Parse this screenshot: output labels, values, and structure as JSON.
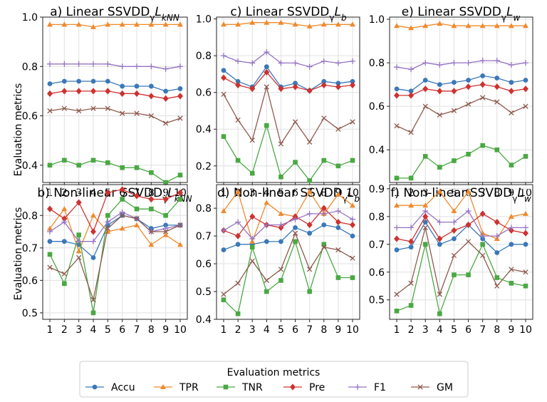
{
  "figure": {
    "ylabel": "Evaluation metrics",
    "legend_title": "Evaluation metrics",
    "colors": {
      "Accu": "#3a78b8",
      "TPR": "#ef8a2e",
      "TNR": "#4aa843",
      "Pre": "#cc3330",
      "F1": "#9674c4",
      "GM": "#8f5a4e"
    },
    "markers": {
      "Accu": "circle",
      "TPR": "triangle",
      "TNR": "square",
      "Pre": "diamond",
      "F1": "plus",
      "GM": "x"
    }
  },
  "chart_data": [
    {
      "type": "line",
      "title_main": "a) Linear SSVDD",
      "title_sub": "γ",
      "title_main2": "L",
      "title_sub2": "kNN",
      "x": [
        1,
        2,
        3,
        4,
        5,
        6,
        7,
        8,
        9,
        10
      ],
      "ylim": [
        0.33,
        1.0
      ],
      "yticks": [
        0.4,
        0.6,
        0.8,
        1.0
      ],
      "ytick_labels": [
        "0.4",
        "0.6",
        "0.8",
        "1.0"
      ],
      "xlabels": [
        "1",
        "2",
        "3",
        "4",
        "5",
        "6",
        "7",
        "8",
        "9",
        "10"
      ],
      "series": [
        {
          "name": "Accu",
          "values": [
            0.73,
            0.74,
            0.74,
            0.74,
            0.74,
            0.72,
            0.72,
            0.72,
            0.7,
            0.71
          ]
        },
        {
          "name": "TPR",
          "values": [
            0.97,
            0.97,
            0.97,
            0.96,
            0.97,
            0.97,
            0.97,
            0.97,
            0.97,
            0.97
          ]
        },
        {
          "name": "TNR",
          "values": [
            0.4,
            0.42,
            0.4,
            0.42,
            0.41,
            0.39,
            0.39,
            0.37,
            0.33,
            0.36
          ]
        },
        {
          "name": "Pre",
          "values": [
            0.69,
            0.7,
            0.7,
            0.7,
            0.7,
            0.69,
            0.69,
            0.68,
            0.67,
            0.68
          ]
        },
        {
          "name": "F1",
          "values": [
            0.81,
            0.81,
            0.81,
            0.81,
            0.81,
            0.8,
            0.8,
            0.8,
            0.79,
            0.8
          ]
        },
        {
          "name": "GM",
          "values": [
            0.62,
            0.63,
            0.62,
            0.63,
            0.63,
            0.61,
            0.61,
            0.6,
            0.57,
            0.59
          ]
        }
      ]
    },
    {
      "type": "line",
      "title_main": "c) Linear SSVDD",
      "title_sub": "γ",
      "title_main2": "L",
      "title_sub2": "b",
      "x": [
        1,
        2,
        3,
        4,
        5,
        6,
        7,
        8,
        9,
        10
      ],
      "ylim": [
        0.11,
        1.01
      ],
      "yticks": [
        0.2,
        0.4,
        0.6,
        0.8,
        1.0
      ],
      "ytick_labels": [
        "0.2",
        "0.4",
        "0.6",
        "0.8",
        "1.0"
      ],
      "xlabels": [
        "1",
        "2",
        "3",
        "4",
        "5",
        "6",
        "7",
        "8",
        "9",
        "10"
      ],
      "series": [
        {
          "name": "Accu",
          "values": [
            0.72,
            0.66,
            0.63,
            0.74,
            0.63,
            0.65,
            0.61,
            0.66,
            0.65,
            0.66
          ]
        },
        {
          "name": "TPR",
          "values": [
            0.97,
            0.97,
            0.98,
            0.98,
            0.98,
            0.97,
            0.96,
            0.97,
            0.97,
            0.97
          ]
        },
        {
          "name": "TNR",
          "values": [
            0.36,
            0.23,
            0.16,
            0.42,
            0.14,
            0.22,
            0.12,
            0.23,
            0.2,
            0.23
          ]
        },
        {
          "name": "Pre",
          "values": [
            0.68,
            0.64,
            0.62,
            0.71,
            0.62,
            0.63,
            0.61,
            0.64,
            0.63,
            0.64
          ]
        },
        {
          "name": "F1",
          "values": [
            0.8,
            0.77,
            0.76,
            0.82,
            0.76,
            0.76,
            0.74,
            0.77,
            0.76,
            0.77
          ]
        },
        {
          "name": "GM",
          "values": [
            0.59,
            0.45,
            0.34,
            0.63,
            0.32,
            0.44,
            0.33,
            0.46,
            0.4,
            0.44
          ]
        }
      ]
    },
    {
      "type": "line",
      "title_main": "e) Linear SSVDD",
      "title_sub": "γ",
      "title_main2": "L",
      "title_sub2": "w",
      "x": [
        1,
        2,
        3,
        4,
        5,
        6,
        7,
        8,
        9,
        10
      ],
      "ylim": [
        0.25,
        1.01
      ],
      "yticks": [
        0.4,
        0.6,
        0.8,
        1.0
      ],
      "ytick_labels": [
        "0.4",
        "0.6",
        "0.8",
        "1.0"
      ],
      "xlabels": [
        "1",
        "2",
        "3",
        "4",
        "5",
        "6",
        "7",
        "8",
        "9",
        "10"
      ],
      "series": [
        {
          "name": "Accu",
          "values": [
            0.68,
            0.67,
            0.72,
            0.7,
            0.71,
            0.72,
            0.74,
            0.73,
            0.71,
            0.72
          ]
        },
        {
          "name": "TPR",
          "values": [
            0.97,
            0.96,
            0.97,
            0.98,
            0.97,
            0.97,
            0.97,
            0.97,
            0.97,
            0.97
          ]
        },
        {
          "name": "TNR",
          "values": [
            0.27,
            0.27,
            0.37,
            0.32,
            0.35,
            0.38,
            0.42,
            0.4,
            0.33,
            0.37
          ]
        },
        {
          "name": "Pre",
          "values": [
            0.65,
            0.65,
            0.68,
            0.67,
            0.67,
            0.69,
            0.7,
            0.69,
            0.67,
            0.68
          ]
        },
        {
          "name": "F1",
          "values": [
            0.78,
            0.77,
            0.8,
            0.79,
            0.8,
            0.8,
            0.81,
            0.81,
            0.79,
            0.8
          ]
        },
        {
          "name": "GM",
          "values": [
            0.51,
            0.48,
            0.6,
            0.56,
            0.58,
            0.61,
            0.64,
            0.62,
            0.57,
            0.6
          ]
        }
      ]
    },
    {
      "type": "line",
      "title_main": "b) Non-linear SSVDD",
      "title_sub": "γ",
      "title_main2": "L",
      "title_sub2": "kNN",
      "x": [
        1,
        2,
        3,
        4,
        5,
        6,
        7,
        8,
        9,
        10
      ],
      "ylim": [
        0.48,
        0.895
      ],
      "yticks": [
        0.5,
        0.6,
        0.7,
        0.8
      ],
      "ytick_labels": [
        "0.5",
        "0.6",
        "0.7",
        "0.8"
      ],
      "xlabels": [
        "1",
        "2",
        "3",
        "4",
        "5",
        "6",
        "7",
        "8",
        "9",
        "10"
      ],
      "series": [
        {
          "name": "Accu",
          "values": [
            0.72,
            0.72,
            0.71,
            0.67,
            0.77,
            0.8,
            0.79,
            0.76,
            0.77,
            0.77
          ]
        },
        {
          "name": "TPR",
          "values": [
            0.76,
            0.82,
            0.69,
            0.8,
            0.75,
            0.76,
            0.77,
            0.71,
            0.74,
            0.71
          ]
        },
        {
          "name": "TNR",
          "values": [
            0.68,
            0.59,
            0.74,
            0.5,
            0.8,
            0.85,
            0.82,
            0.82,
            0.8,
            0.85
          ]
        },
        {
          "name": "Pre",
          "values": [
            0.82,
            0.79,
            0.84,
            0.75,
            0.87,
            0.88,
            0.86,
            0.85,
            0.85,
            0.87
          ]
        },
        {
          "name": "F1",
          "values": [
            0.75,
            0.78,
            0.72,
            0.72,
            0.78,
            0.81,
            0.79,
            0.75,
            0.76,
            0.77
          ]
        },
        {
          "name": "GM",
          "values": [
            0.64,
            0.62,
            0.67,
            0.54,
            0.76,
            0.8,
            0.79,
            0.75,
            0.75,
            0.77
          ]
        }
      ]
    },
    {
      "type": "line",
      "title_main": "d) Non-linear SSVDD",
      "title_sub": "γ",
      "title_main2": "L",
      "title_sub2": "b",
      "x": [
        1,
        2,
        3,
        4,
        5,
        6,
        7,
        8,
        9,
        10
      ],
      "ylim": [
        0.4,
        0.885
      ],
      "yticks": [
        0.4,
        0.5,
        0.6,
        0.7,
        0.8
      ],
      "ytick_labels": [
        "0.4",
        "0.5",
        "0.6",
        "0.7",
        "0.8"
      ],
      "xlabels": [
        "1",
        "2",
        "3",
        "4",
        "5",
        "6",
        "7",
        "8",
        "9",
        "10"
      ],
      "series": [
        {
          "name": "Accu",
          "values": [
            0.65,
            0.67,
            0.67,
            0.68,
            0.68,
            0.73,
            0.71,
            0.74,
            0.73,
            0.7
          ]
        },
        {
          "name": "TPR",
          "values": [
            0.79,
            0.86,
            0.68,
            0.82,
            0.78,
            0.77,
            0.86,
            0.78,
            0.85,
            0.81
          ]
        },
        {
          "name": "TNR",
          "values": [
            0.47,
            0.42,
            0.66,
            0.5,
            0.54,
            0.68,
            0.5,
            0.67,
            0.55,
            0.55
          ]
        },
        {
          "name": "Pre",
          "values": [
            0.72,
            0.7,
            0.77,
            0.74,
            0.73,
            0.77,
            0.74,
            0.8,
            0.75,
            0.74
          ]
        },
        {
          "name": "F1",
          "values": [
            0.72,
            0.75,
            0.69,
            0.74,
            0.74,
            0.76,
            0.78,
            0.78,
            0.79,
            0.76
          ]
        },
        {
          "name": "GM",
          "values": [
            0.49,
            0.53,
            0.61,
            0.54,
            0.58,
            0.71,
            0.58,
            0.66,
            0.65,
            0.62
          ]
        }
      ]
    },
    {
      "type": "line",
      "title_main": "f) Non-linear SSVDD",
      "title_sub": "γ",
      "title_main2": "L",
      "title_sub2": "w",
      "x": [
        1,
        2,
        3,
        4,
        5,
        6,
        7,
        8,
        9,
        10
      ],
      "ylim": [
        0.43,
        0.915
      ],
      "yticks": [
        0.5,
        0.6,
        0.7,
        0.8,
        0.9
      ],
      "ytick_labels": [
        "0.5",
        "0.6",
        "0.7",
        "0.8",
        "0.9"
      ],
      "xlabels": [
        "1",
        "2",
        "3",
        "4",
        "5",
        "6",
        "7",
        "8",
        "9",
        "10"
      ],
      "series": [
        {
          "name": "Accu",
          "values": [
            0.68,
            0.69,
            0.78,
            0.7,
            0.72,
            0.77,
            0.72,
            0.67,
            0.7,
            0.7
          ]
        },
        {
          "name": "TPR",
          "values": [
            0.84,
            0.84,
            0.84,
            0.89,
            0.82,
            0.89,
            0.74,
            0.72,
            0.8,
            0.81
          ]
        },
        {
          "name": "TNR",
          "values": [
            0.46,
            0.48,
            0.7,
            0.45,
            0.59,
            0.59,
            0.7,
            0.58,
            0.56,
            0.55
          ]
        },
        {
          "name": "Pre",
          "values": [
            0.72,
            0.71,
            0.8,
            0.72,
            0.75,
            0.77,
            0.81,
            0.78,
            0.75,
            0.74
          ]
        },
        {
          "name": "F1",
          "values": [
            0.76,
            0.76,
            0.82,
            0.78,
            0.78,
            0.82,
            0.73,
            0.73,
            0.76,
            0.76
          ]
        },
        {
          "name": "GM",
          "values": [
            0.52,
            0.56,
            0.76,
            0.52,
            0.66,
            0.71,
            0.66,
            0.55,
            0.61,
            0.6
          ]
        }
      ]
    }
  ]
}
